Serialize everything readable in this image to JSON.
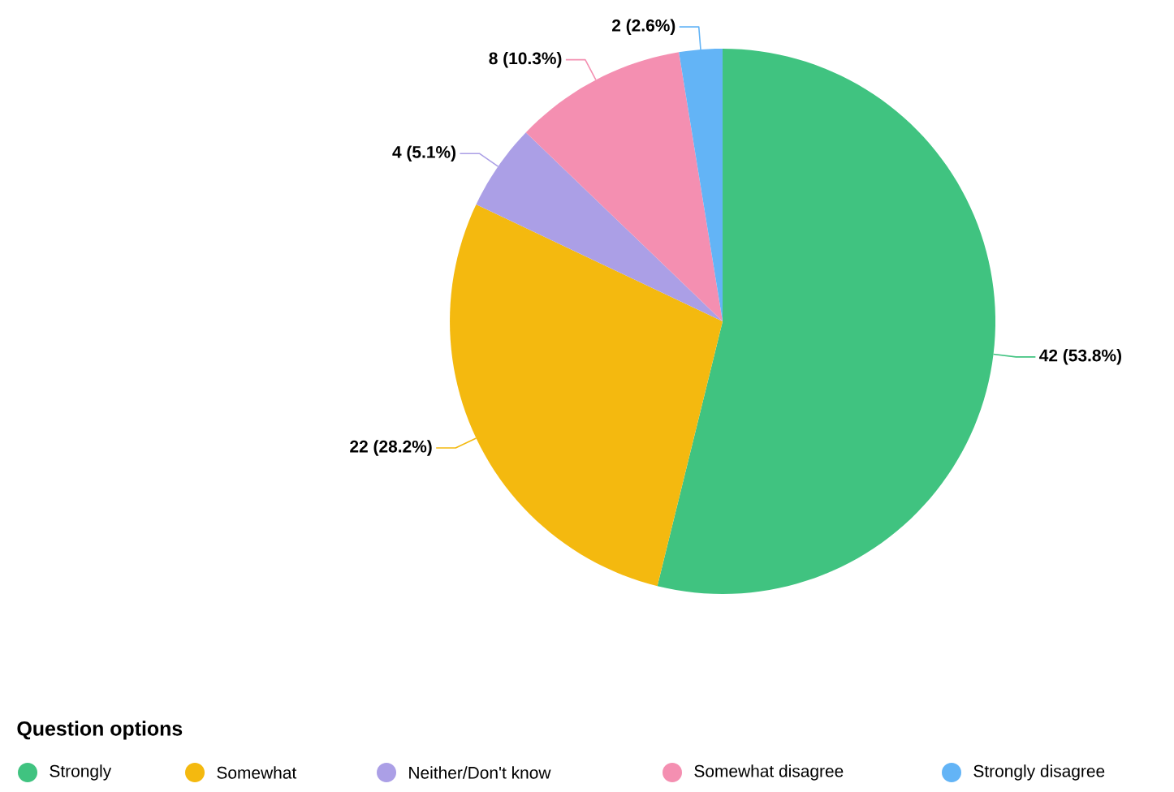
{
  "chart_data": {
    "type": "pie",
    "categories": [
      "Strongly",
      "Somewhat",
      "Neither/Don't know",
      "Somewhat disagree",
      "Strongly disagree"
    ],
    "values": [
      42,
      22,
      4,
      8,
      2
    ],
    "colors": [
      "#40c380",
      "#f4b90f",
      "#ab9fe6",
      "#f48fb1",
      "#63b4f6"
    ],
    "value_labels": [
      "42 (53.8%)",
      "22 (28.2%)",
      "4 (5.1%)",
      "8 (10.3%)",
      "2 (2.6%)"
    ],
    "legend": "bottom",
    "legend_title": "Question options"
  }
}
